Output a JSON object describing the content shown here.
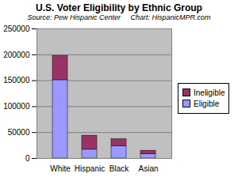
{
  "chart_data": {
    "type": "bar",
    "title": "U.S. Voter Eligibility by Ethnic Group",
    "subtitle": "Source: Pew Hispanic Center     Chart: HispanicMPR.com",
    "categories": [
      "White",
      "Hispanic",
      "Black",
      "Asian"
    ],
    "series": [
      {
        "name": "Eligible",
        "color": "#9999ff",
        "values": [
          151000,
          17000,
          24000,
          8000
        ]
      },
      {
        "name": "Ineligible",
        "color": "#993366",
        "values": [
          47000,
          27000,
          13000,
          7000
        ]
      }
    ],
    "stacked": true,
    "ylim": [
      0,
      250000
    ],
    "yticks": [
      0,
      50000,
      100000,
      150000,
      200000,
      250000
    ],
    "grid": true,
    "legend": "right"
  }
}
